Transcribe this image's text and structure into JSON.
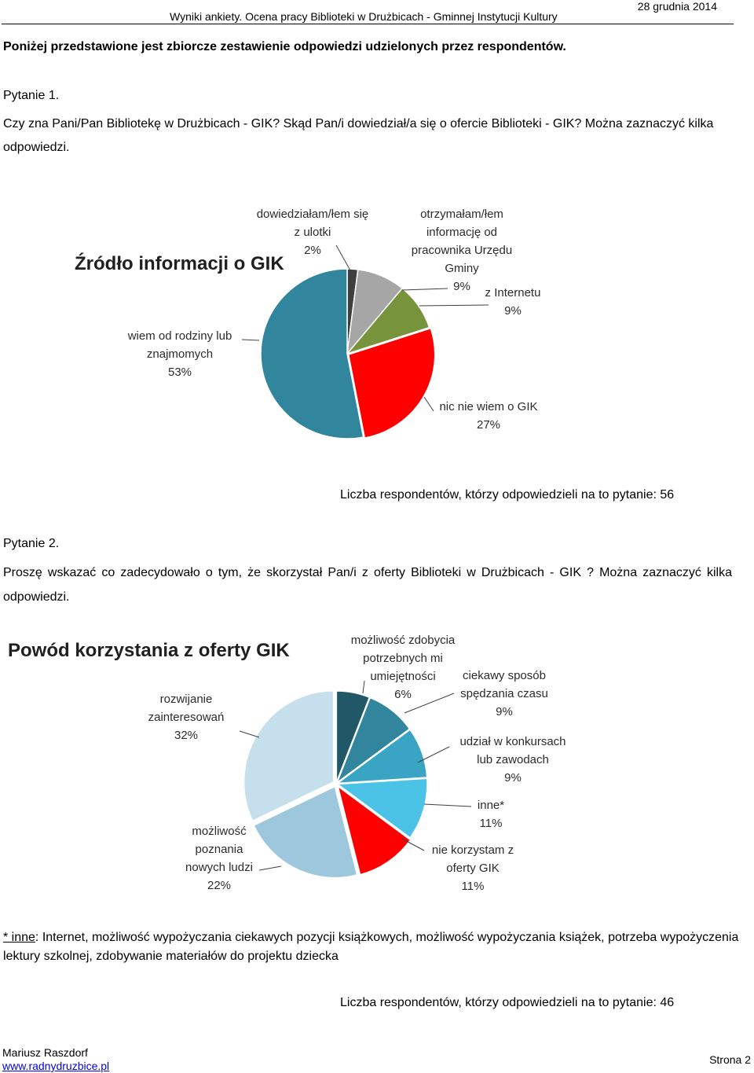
{
  "header": {
    "title": "Wyniki ankiety. Ocena pracy Biblioteki w Drużbicach - Gminnej Instytucji Kultury",
    "date": "28 grudnia 2014"
  },
  "intro": "Poniżej przedstawione jest zbiorcze zestawienie odpowiedzi udzielonych przez respondentów.",
  "question1": {
    "title": "Pytanie 1.",
    "text": "Czy zna Pani/Pan Bibliotekę w Drużbicach - GIK? Skąd Pan/i dowiedział/a się o ofercie Biblioteki - GIK? Można zaznaczyć kilka odpowiedzi.",
    "respondents": "Liczba respondentów, którzy odpowiedzieli na to pytanie: 56"
  },
  "question2": {
    "title": "Pytanie 2.",
    "text": "Proszę wskazać co zadecydowało o tym, że skorzystał Pan/i z oferty Biblioteki w Drużbicach - GIK ? Można zaznaczyć kilka odpowiedzi.",
    "respondents": "Liczba respondentów, którzy odpowiedzieli na to pytanie: 46"
  },
  "footnote": {
    "marker": "* inne",
    "text": ": Internet, możliwość wypożyczania ciekawych pozycji książkowych, możliwość wypożyczania książek, potrzeba wypożyczenia lektury szkolnej, zdobywanie materiałów do projektu dziecka"
  },
  "footer": {
    "author": "Mariusz Raszdorf",
    "link": "www.radnydruzbice.pl",
    "page": "Strona 2"
  },
  "chart_data": [
    {
      "type": "pie",
      "title": "Źródło informacji o GIK",
      "slices": [
        {
          "label": "dowiedziałam/łem się z ulotki",
          "value": 2,
          "color": "#404040"
        },
        {
          "label": "otrzymałam/łem informację od pracownika Urzędu Gminy",
          "value": 9,
          "color": "#a6a6a6"
        },
        {
          "label": "z Internetu",
          "value": 9,
          "color": "#77933c"
        },
        {
          "label": "nic nie wiem o GIK",
          "value": 27,
          "color": "#ff0000"
        },
        {
          "label": "wiem od rodziny lub znajmomych",
          "value": 53,
          "color": "#31859c"
        }
      ],
      "label_lines": [
        [
          "dowiedziałam/łem się",
          "z ulotki",
          "2%"
        ],
        [
          "otrzymałam/łem",
          "informację od",
          "pracownika Urzędu",
          "Gminy",
          "9%"
        ],
        [
          "z Internetu",
          "9%"
        ],
        [
          "nic nie wiem o GIK",
          "27%"
        ],
        [
          "wiem od rodziny lub",
          "znajmomych",
          "53%"
        ]
      ]
    },
    {
      "type": "pie",
      "title": "Powód korzystania z oferty GIK",
      "slices": [
        {
          "label": "możliwość zdobycia potrzebnych mi umiejętności",
          "value": 6,
          "color": "#215868"
        },
        {
          "label": "ciekawy sposób spędzania czasu",
          "value": 9,
          "color": "#31859c"
        },
        {
          "label": "udział w konkursach lub zawodach",
          "value": 9,
          "color": "#3aa4c4"
        },
        {
          "label": "inne*",
          "value": 11,
          "color": "#4bc3e6"
        },
        {
          "label": "nie korzystam z oferty GIK",
          "value": 11,
          "color": "#ff0000"
        },
        {
          "label": "możliwość poznania nowych ludzi",
          "value": 22,
          "color": "#9cc7dc"
        },
        {
          "label": "rozwijanie zainteresowań",
          "value": 32,
          "color": "#c6dfec"
        }
      ],
      "label_lines": [
        [
          "możliwość zdobycia",
          "potrzebnych mi",
          "umiejętności",
          "6%"
        ],
        [
          "ciekawy sposób",
          "spędzania czasu",
          "9%"
        ],
        [
          "udział w konkursach",
          "lub zawodach",
          "9%"
        ],
        [
          "inne*",
          "11%"
        ],
        [
          "nie korzystam z",
          "oferty GIK",
          "11%"
        ],
        [
          "możliwość",
          "poznania",
          "nowych ludzi",
          "22%"
        ],
        [
          "rozwijanie",
          "zainteresowań",
          "32%"
        ]
      ]
    }
  ]
}
